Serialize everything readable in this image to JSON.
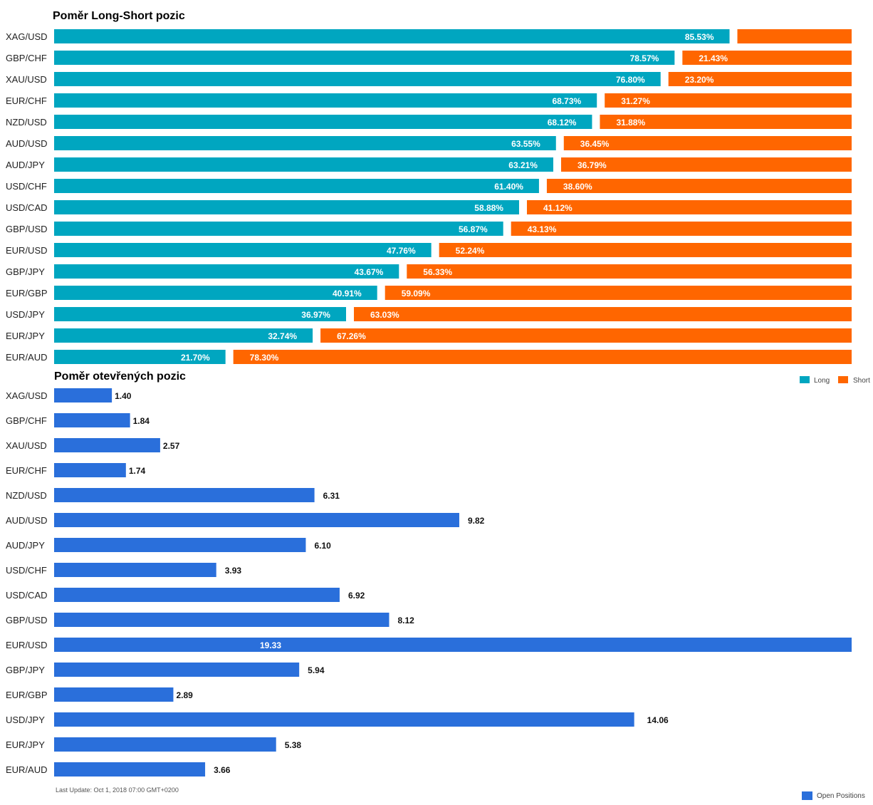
{
  "footer": "Last Update: Oct 1, 2018 07:00 GMT+0200",
  "chart_data": [
    {
      "type": "bar",
      "orientation": "horizontal",
      "stacked": true,
      "title": "Poměr Long-Short pozic",
      "categories": [
        "XAG/USD",
        "GBP/CHF",
        "XAU/USD",
        "EUR/CHF",
        "NZD/USD",
        "AUD/USD",
        "AUD/JPY",
        "USD/CHF",
        "USD/CAD",
        "GBP/USD",
        "EUR/USD",
        "GBP/JPY",
        "EUR/GBP",
        "USD/JPY",
        "EUR/JPY",
        "EUR/AUD"
      ],
      "series": [
        {
          "name": "Long",
          "color": "#00a6c0",
          "values": [
            85.53,
            78.57,
            76.8,
            68.73,
            68.12,
            63.55,
            63.21,
            61.4,
            58.88,
            56.87,
            47.76,
            43.67,
            40.91,
            36.97,
            32.74,
            21.7
          ]
        },
        {
          "name": "Short",
          "color": "#ff6600",
          "values": [
            14.47,
            21.43,
            23.2,
            31.27,
            31.88,
            36.45,
            36.79,
            38.6,
            41.12,
            43.13,
            52.24,
            56.33,
            59.09,
            63.03,
            67.26,
            78.3
          ]
        }
      ],
      "xlim": [
        0,
        100
      ],
      "legend": "bottom-right",
      "grid": false
    },
    {
      "type": "bar",
      "orientation": "horizontal",
      "title": "Poměr otevřených pozic",
      "categories": [
        "XAG/USD",
        "GBP/CHF",
        "XAU/USD",
        "EUR/CHF",
        "NZD/USD",
        "AUD/USD",
        "AUD/JPY",
        "USD/CHF",
        "USD/CAD",
        "GBP/USD",
        "EUR/USD",
        "GBP/JPY",
        "EUR/GBP",
        "USD/JPY",
        "EUR/JPY",
        "EUR/AUD"
      ],
      "series": [
        {
          "name": "Open Positions",
          "color": "#2a6fdb",
          "values": [
            1.4,
            1.84,
            2.57,
            1.74,
            6.31,
            9.82,
            6.1,
            3.93,
            6.92,
            8.12,
            19.33,
            5.94,
            2.89,
            14.06,
            5.38,
            3.66
          ]
        }
      ],
      "xlim": [
        0,
        19.33
      ],
      "legend": "bottom-right",
      "grid": false
    }
  ]
}
